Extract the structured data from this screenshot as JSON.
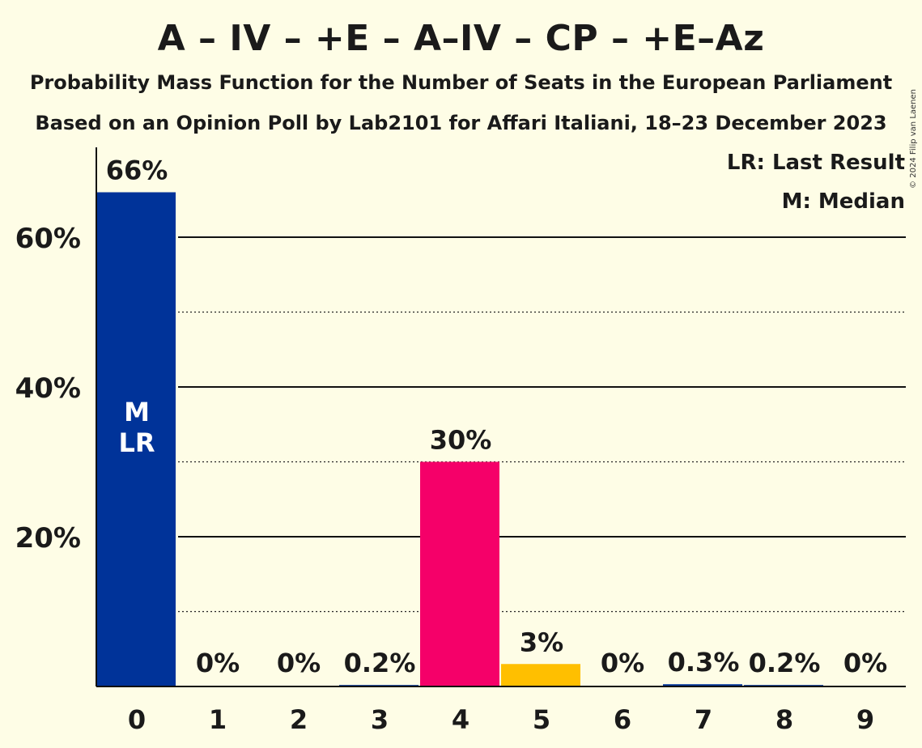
{
  "chart_data": {
    "type": "bar",
    "title": "A – IV – +E – A–IV – CP – +E–Az",
    "subtitle": "Probability Mass Function for the Number of Seats in the European Parliament",
    "subtitle2": "Based on an Opinion Poll by Lab2101 for Affari Italiani, 18–23 December 2023",
    "copyright": "© 2024 Filip van Laenen",
    "categories": [
      "0",
      "1",
      "2",
      "3",
      "4",
      "5",
      "6",
      "7",
      "8",
      "9"
    ],
    "values": [
      66,
      0,
      0,
      0.2,
      30,
      3,
      0,
      0.3,
      0.2,
      0
    ],
    "data_labels": [
      "66%",
      "0%",
      "0%",
      "0.2%",
      "30%",
      "3%",
      "0%",
      "0.3%",
      "0.2%",
      "0%"
    ],
    "bar_colors": [
      "#003399",
      "#003399",
      "#003399",
      "#003399",
      "#f50069",
      "#ffbf00",
      "#003399",
      "#003399",
      "#003399",
      "#003399"
    ],
    "ylim": [
      0,
      70
    ],
    "yticks": [
      20,
      40,
      60
    ],
    "ytick_labels": [
      "20%",
      "40%",
      "60%"
    ],
    "minor_gridlines": [
      10,
      30,
      50
    ],
    "median_index": 0,
    "last_result_index": 0,
    "bar_markers": [
      "M",
      "LR"
    ],
    "legend": [
      "LR: Last Result",
      "M: Median"
    ],
    "legend_position": "top-right",
    "grid": true
  }
}
